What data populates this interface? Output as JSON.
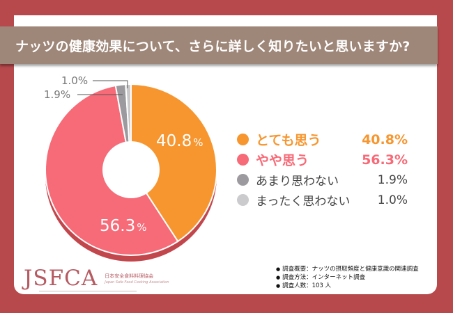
{
  "title": "ナッツの健康効果について、さらに詳しく知りたいと思いますか?",
  "colors": {
    "background": "#b7494c",
    "title_bar": "#9e8678",
    "extrusion": "#c2474d"
  },
  "chart_data": {
    "type": "pie",
    "variant": "donut-3d",
    "title": "ナッツの健康効果について、さらに詳しく知りたいと思いますか?",
    "categories": [
      "とても思う",
      "やや思う",
      "あまり思わない",
      "まったく思わない"
    ],
    "values": [
      40.8,
      56.3,
      1.9,
      1.0
    ],
    "unit": "%",
    "colors": [
      "#f7962f",
      "#f76a77",
      "#9c9a9e",
      "#cbcacd"
    ],
    "data_labels": [
      "40.8%",
      "56.3%",
      "1.9%",
      "1.0%"
    ],
    "start_angle_deg": 0,
    "direction": "clockwise",
    "legend_position": "right"
  },
  "legend": [
    {
      "label": "とても思う",
      "value": "40.8%",
      "color": "#f7962f",
      "emphasis": true
    },
    {
      "label": "やや思う",
      "value": "56.3%",
      "color": "#f76a77",
      "emphasis": true
    },
    {
      "label": "あまり思わない",
      "value": "1.9%",
      "color": "#9c9a9e",
      "emphasis": false
    },
    {
      "label": "まったく思わない",
      "value": "1.0%",
      "color": "#cbcacd",
      "emphasis": false
    }
  ],
  "slice_labels": {
    "s0": {
      "num": "40.8",
      "pct": "%"
    },
    "s1": {
      "num": "56.3",
      "pct": "%"
    },
    "s2": "1.9%",
    "s3": "1.0%"
  },
  "logo": {
    "mark": "JSFCA",
    "jp": "日本安全食料料理協会",
    "en": "Japan Safe Food Cooking Association"
  },
  "notes": [
    "調査概要：ナッツの摂取頻度と健康意識の関連調査",
    "調査方法：インターネット調査",
    "調査人数：103 人"
  ]
}
